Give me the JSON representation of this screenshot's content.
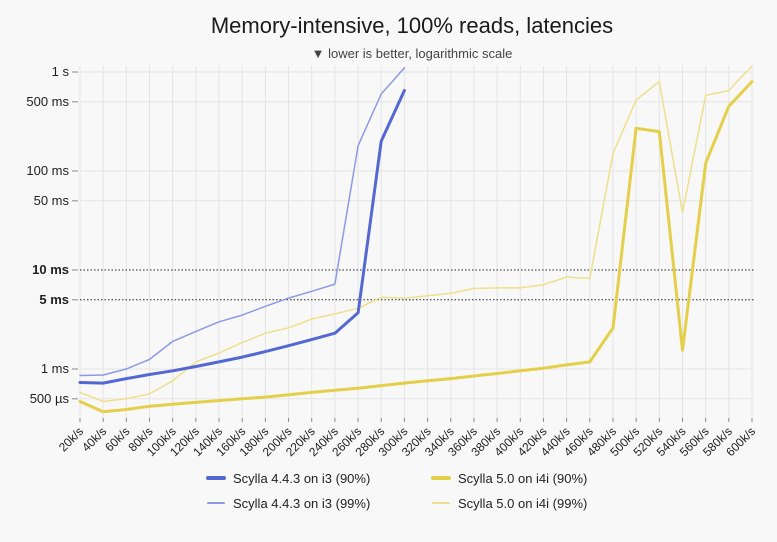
{
  "chart_data": {
    "type": "line",
    "title": "Memory-intensive, 100% reads, latencies",
    "subtitle": "▼ lower is better, logarithmic scale",
    "y_scale": "log",
    "y_unit": "ms",
    "ylim": [
      0.32,
      1150
    ],
    "x_labels": [
      "20k/s",
      "40k/s",
      "60k/s",
      "80k/s",
      "100k/s",
      "120k/s",
      "140k/s",
      "160k/s",
      "180k/s",
      "200k/s",
      "220k/s",
      "240k/s",
      "260k/s",
      "280k/s",
      "300k/s",
      "320k/s",
      "340k/s",
      "360k/s",
      "380k/s",
      "400k/s",
      "420k/s",
      "440k/s",
      "460k/s",
      "480k/s",
      "500k/s",
      "520k/s",
      "540k/s",
      "560k/s",
      "580k/s",
      "600k/s"
    ],
    "y_ticks": [
      {
        "label": "1 s",
        "value": 1000,
        "bold": false
      },
      {
        "label": "500 ms",
        "value": 500,
        "bold": false
      },
      {
        "label": "100 ms",
        "value": 100,
        "bold": false
      },
      {
        "label": "50 ms",
        "value": 50,
        "bold": false
      },
      {
        "label": "10 ms",
        "value": 10,
        "bold": true
      },
      {
        "label": "5 ms",
        "value": 5,
        "bold": true
      },
      {
        "label": "1 ms",
        "value": 1,
        "bold": false
      },
      {
        "label": "500 µs",
        "value": 0.5,
        "bold": false
      }
    ],
    "reference_lines": [
      10,
      5
    ],
    "grid": true,
    "legend_position": "bottom",
    "series": [
      {
        "name": "Scylla 4.4.3 on i3 (90%)",
        "color": "#5468d4",
        "width": 3,
        "values": [
          0.73,
          0.72,
          0.8,
          0.88,
          0.96,
          1.06,
          1.18,
          1.32,
          1.5,
          1.72,
          1.98,
          2.3,
          3.7,
          200,
          650,
          null,
          null,
          null,
          null,
          null,
          null,
          null,
          null,
          null,
          null,
          null,
          null,
          null,
          null,
          null
        ]
      },
      {
        "name": "Scylla 4.4.3 on i3 (99%)",
        "color": "#8c9ae6",
        "width": 1.5,
        "values": [
          0.86,
          0.87,
          1.0,
          1.25,
          1.9,
          2.4,
          3.0,
          3.5,
          4.3,
          5.2,
          6.1,
          7.2,
          180,
          600,
          1100,
          null,
          null,
          null,
          null,
          null,
          null,
          null,
          null,
          null,
          null,
          null,
          null,
          null,
          null,
          null
        ]
      },
      {
        "name": "Scylla 5.0 on i4i (90%)",
        "color": "#e5cf4a",
        "width": 3,
        "values": [
          0.47,
          0.37,
          0.39,
          0.42,
          0.44,
          0.46,
          0.48,
          0.5,
          0.52,
          0.55,
          0.58,
          0.61,
          0.64,
          0.68,
          0.72,
          0.76,
          0.8,
          0.85,
          0.9,
          0.96,
          1.02,
          1.1,
          1.18,
          2.6,
          270,
          250,
          1.55,
          120,
          450,
          800
        ]
      },
      {
        "name": "Scylla 5.0 on i4i (99%)",
        "color": "#efdf8c",
        "width": 1.5,
        "values": [
          0.58,
          0.47,
          0.5,
          0.56,
          0.76,
          1.18,
          1.45,
          1.85,
          2.3,
          2.6,
          3.2,
          3.6,
          4.1,
          5.3,
          5.2,
          5.5,
          5.8,
          6.5,
          6.6,
          6.6,
          7.1,
          8.5,
          8.2,
          150,
          520,
          800,
          38,
          580,
          650,
          1150
        ]
      }
    ]
  }
}
